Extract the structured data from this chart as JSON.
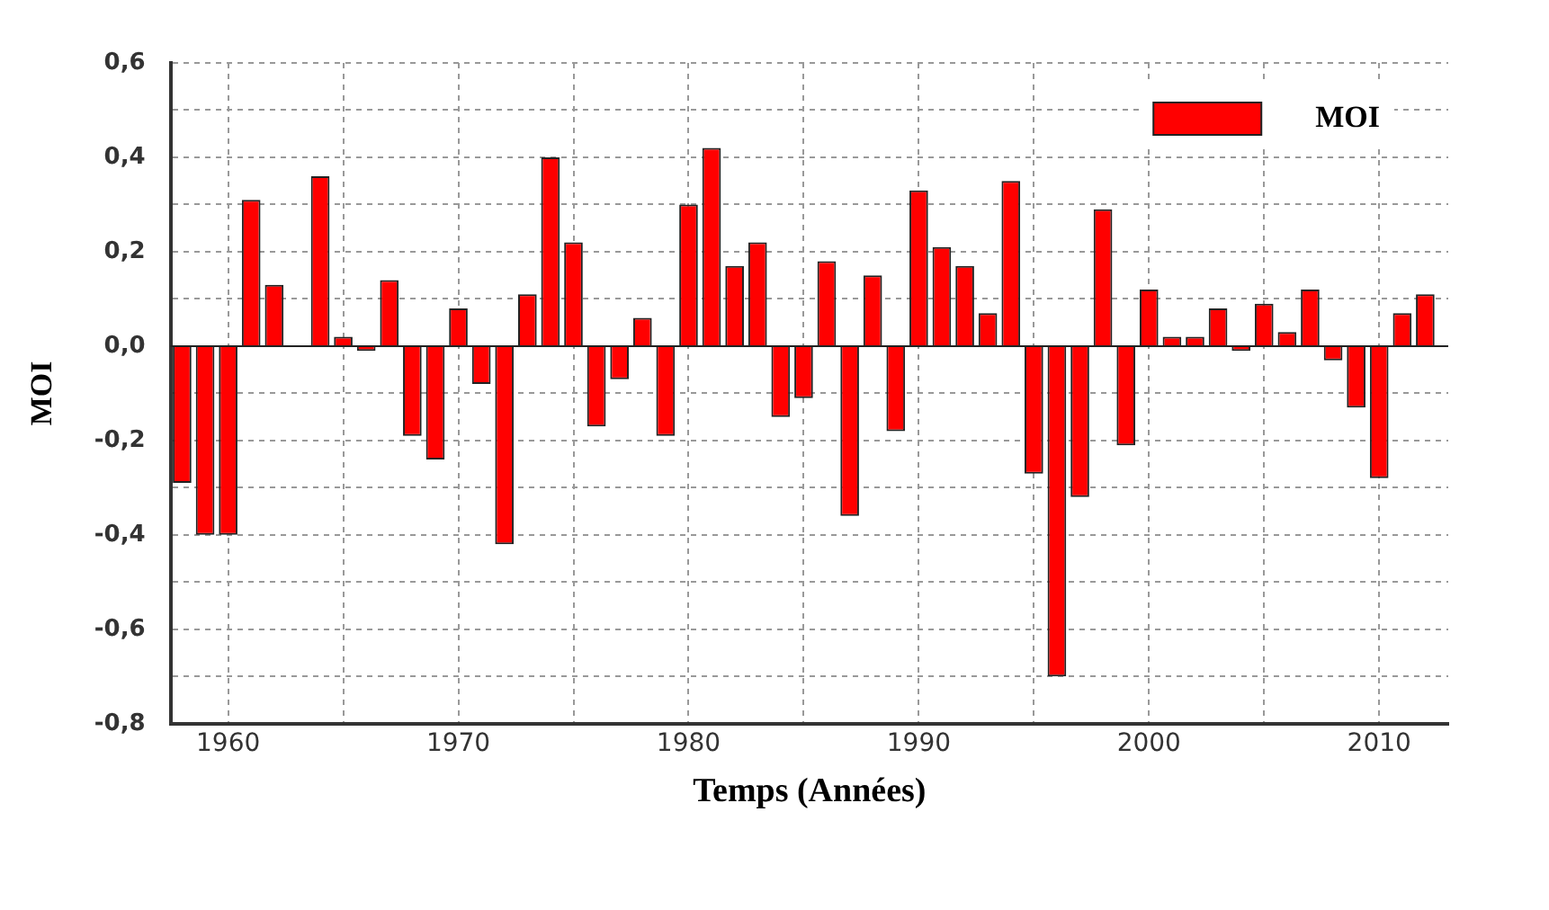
{
  "chart_data": {
    "type": "bar",
    "xlabel": "Temps (Années)",
    "ylabel": "MOI",
    "x": [
      1958,
      1959,
      1960,
      1961,
      1962,
      1963,
      1964,
      1965,
      1966,
      1967,
      1968,
      1969,
      1970,
      1971,
      1972,
      1973,
      1974,
      1975,
      1976,
      1977,
      1978,
      1979,
      1980,
      1981,
      1982,
      1983,
      1984,
      1985,
      1986,
      1987,
      1988,
      1989,
      1990,
      1991,
      1992,
      1993,
      1994,
      1995,
      1996,
      1997,
      1998,
      1999,
      2000,
      2001,
      2002,
      2003,
      2004,
      2005,
      2006,
      2007,
      2008,
      2009,
      2010,
      2011,
      2012
    ],
    "series": [
      {
        "name": "MOI",
        "color": "#ff0000",
        "values": [
          -0.29,
          -0.4,
          -0.4,
          0.31,
          0.13,
          null,
          0.36,
          0.02,
          -0.01,
          0.14,
          -0.19,
          -0.24,
          0.08,
          -0.08,
          -0.42,
          0.11,
          0.4,
          0.22,
          -0.17,
          -0.07,
          0.06,
          -0.19,
          0.3,
          0.42,
          0.17,
          0.22,
          -0.15,
          -0.11,
          0.18,
          -0.36,
          0.15,
          -0.18,
          0.33,
          0.21,
          0.17,
          0.07,
          0.35,
          -0.27,
          -0.7,
          -0.32,
          0.29,
          -0.21,
          0.12,
          0.02,
          0.02,
          0.08,
          -0.01,
          0.09,
          0.03,
          0.12,
          -0.03,
          -0.13,
          -0.28,
          0.07,
          0.11
        ]
      }
    ],
    "xlim": [
      1957.5,
      2013
    ],
    "xticks": [
      1960,
      {
        "value": 1965,
        "label": null
      },
      1970,
      {
        "value": 1975,
        "label": null
      },
      1980,
      {
        "value": 1985,
        "label": null
      },
      1990,
      {
        "value": 1995,
        "label": null
      },
      2000,
      {
        "value": 2005,
        "label": null
      },
      2010
    ],
    "ylim": [
      -0.8,
      0.6
    ],
    "yticks": [
      {
        "value": -0.8,
        "label": "-0,8"
      },
      {
        "value": -0.7,
        "label": null
      },
      {
        "value": -0.6,
        "label": "-0,6"
      },
      {
        "value": -0.5,
        "label": null
      },
      {
        "value": -0.4,
        "label": "-0,4"
      },
      {
        "value": -0.3,
        "label": null
      },
      {
        "value": -0.2,
        "label": "-0,2"
      },
      {
        "value": -0.1,
        "label": null
      },
      {
        "value": 0,
        "label": "0,0"
      },
      {
        "value": 0.1,
        "label": null
      },
      {
        "value": 0.2,
        "label": "0,2"
      },
      {
        "value": 0.3,
        "label": null
      },
      {
        "value": 0.4,
        "label": "0,4"
      },
      {
        "value": 0.5,
        "label": null
      },
      {
        "value": 0.6,
        "label": "0,6"
      }
    ],
    "grid": true,
    "legend": "top right"
  }
}
